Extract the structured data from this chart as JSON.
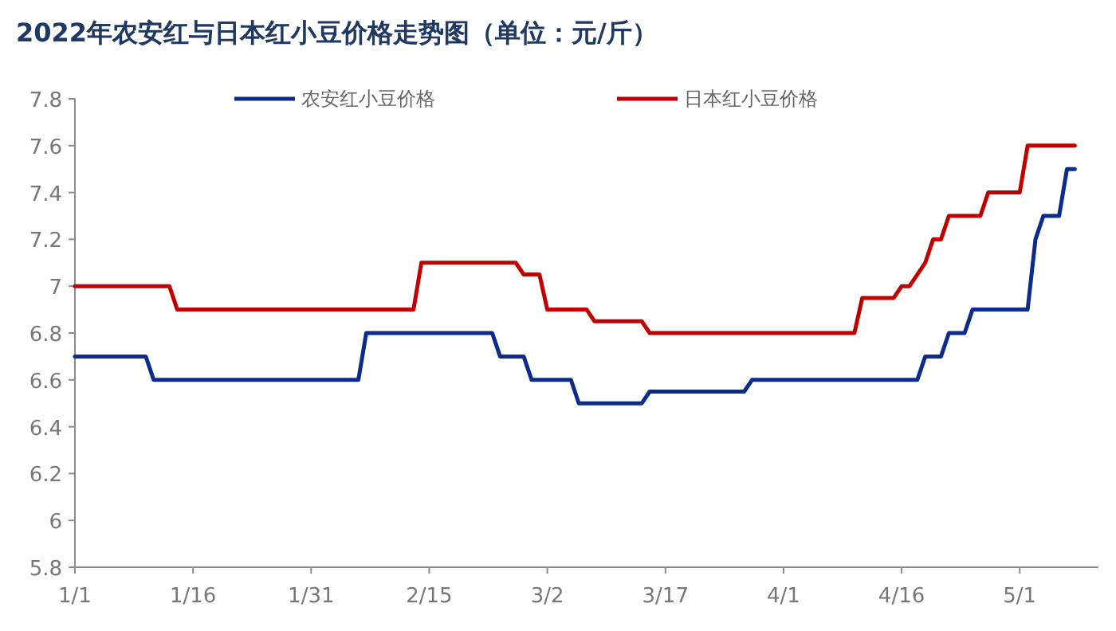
{
  "chart_data": {
    "type": "line",
    "title": "2022年农安红与日本红小豆价格走势图（单位：元/斤）",
    "legend": "top",
    "grid": false,
    "xlim": [
      "2022-01-01",
      "2022-05-11"
    ],
    "xticks": [
      {
        "value": "2022-01-01",
        "label": "1/1"
      },
      {
        "value": "2022-01-16",
        "label": "1/16"
      },
      {
        "value": "2022-01-31",
        "label": "1/31"
      },
      {
        "value": "2022-02-15",
        "label": "2/15"
      },
      {
        "value": "2022-03-02",
        "label": "3/2"
      },
      {
        "value": "2022-03-17",
        "label": "3/17"
      },
      {
        "value": "2022-04-01",
        "label": "4/1"
      },
      {
        "value": "2022-04-16",
        "label": "4/16"
      },
      {
        "value": "2022-05-01",
        "label": "5/1"
      }
    ],
    "ylim": [
      5.8,
      7.8
    ],
    "yticks": [
      5.8,
      6,
      6.2,
      6.4,
      6.6,
      6.8,
      7,
      7.2,
      7.4,
      7.6,
      7.8
    ],
    "series": [
      {
        "name": "农安红小豆价格",
        "color": "#0c2c8c",
        "x": [
          "2022-01-01",
          "2022-01-10",
          "2022-01-11",
          "2022-02-06",
          "2022-02-07",
          "2022-02-23",
          "2022-02-24",
          "2022-02-27",
          "2022-02-28",
          "2022-03-05",
          "2022-03-06",
          "2022-03-14",
          "2022-03-15",
          "2022-03-27",
          "2022-03-28",
          "2022-04-18",
          "2022-04-19",
          "2022-04-21",
          "2022-04-22",
          "2022-04-24",
          "2022-04-25",
          "2022-05-02",
          "2022-05-03",
          "2022-05-04",
          "2022-05-06",
          "2022-05-07",
          "2022-05-08"
        ],
        "values": [
          6.7,
          6.7,
          6.6,
          6.6,
          6.8,
          6.8,
          6.7,
          6.7,
          6.6,
          6.6,
          6.5,
          6.5,
          6.55,
          6.55,
          6.6,
          6.6,
          6.7,
          6.7,
          6.8,
          6.8,
          6.9,
          6.9,
          7.2,
          7.3,
          7.3,
          7.5,
          7.5
        ]
      },
      {
        "name": "日本红小豆价格",
        "color": "#c00000",
        "x": [
          "2022-01-01",
          "2022-01-13",
          "2022-01-14",
          "2022-02-13",
          "2022-02-14",
          "2022-02-26",
          "2022-02-27",
          "2022-03-01",
          "2022-03-02",
          "2022-03-07",
          "2022-03-08",
          "2022-03-14",
          "2022-03-15",
          "2022-04-10",
          "2022-04-11",
          "2022-04-15",
          "2022-04-16",
          "2022-04-17",
          "2022-04-19",
          "2022-04-20",
          "2022-04-21",
          "2022-04-22",
          "2022-04-26",
          "2022-04-27",
          "2022-05-01",
          "2022-05-02",
          "2022-05-08"
        ],
        "values": [
          7,
          7,
          6.9,
          6.9,
          7.1,
          7.1,
          7.05,
          7.05,
          6.9,
          6.9,
          6.85,
          6.85,
          6.8,
          6.8,
          6.95,
          6.95,
          7,
          7,
          7.1,
          7.2,
          7.2,
          7.3,
          7.3,
          7.4,
          7.4,
          7.6,
          7.6
        ]
      }
    ]
  }
}
